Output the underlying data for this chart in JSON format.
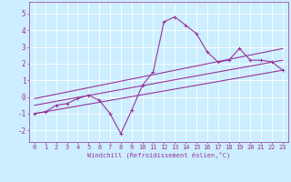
{
  "xlabel": "Windchill (Refroidissement éolien,°C)",
  "ylabel": "",
  "background_color": "#cceeff",
  "grid_color": "#ffffff",
  "line_color": "#993399",
  "xlim": [
    -0.5,
    23.5
  ],
  "ylim": [
    -2.7,
    5.7
  ],
  "xticks": [
    0,
    1,
    2,
    3,
    4,
    5,
    6,
    7,
    8,
    9,
    10,
    11,
    12,
    13,
    14,
    15,
    16,
    17,
    18,
    19,
    20,
    21,
    22,
    23
  ],
  "yticks": [
    -2,
    -1,
    0,
    1,
    2,
    3,
    4,
    5
  ],
  "line1_x": [
    0,
    1,
    2,
    3,
    4,
    5,
    6,
    7,
    8,
    9,
    10,
    11,
    12,
    13,
    14,
    15,
    16,
    17,
    18,
    19,
    20,
    21,
    22,
    23
  ],
  "line1_y": [
    -1.0,
    -0.9,
    -0.5,
    -0.4,
    -0.1,
    0.1,
    -0.2,
    -1.0,
    -2.2,
    -0.8,
    0.7,
    1.5,
    4.5,
    4.8,
    4.3,
    3.8,
    2.7,
    2.1,
    2.2,
    2.9,
    2.2,
    2.2,
    2.1,
    1.6
  ],
  "line2_x": [
    0,
    23
  ],
  "line2_y": [
    -1.0,
    1.6
  ],
  "line3_x": [
    0,
    23
  ],
  "line3_y": [
    -0.5,
    2.2
  ],
  "line4_x": [
    0,
    23
  ],
  "line4_y": [
    -0.1,
    2.9
  ],
  "tick_fontsize": 5,
  "xlabel_fontsize": 5,
  "lw": 0.8
}
